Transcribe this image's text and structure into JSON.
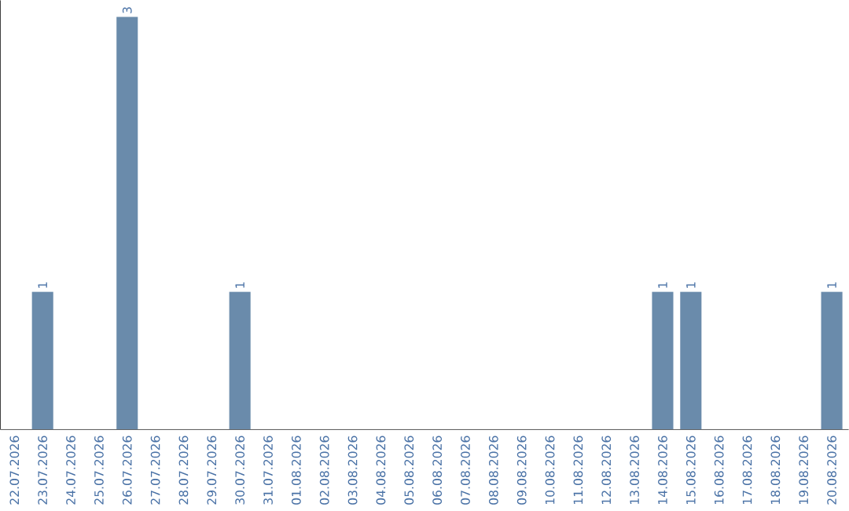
{
  "chart_data": {
    "type": "bar",
    "categories": [
      "22.07.2026",
      "23.07.2026",
      "24.07.2026",
      "25.07.2026",
      "26.07.2026",
      "27.07.2026",
      "28.07.2026",
      "29.07.2026",
      "30.07.2026",
      "31.07.2026",
      "01.08.2026",
      "02.08.2026",
      "03.08.2026",
      "04.08.2026",
      "05.08.2026",
      "06.08.2026",
      "07.08.2026",
      "08.08.2026",
      "09.08.2026",
      "10.08.2026",
      "11.08.2026",
      "12.08.2026",
      "13.08.2026",
      "14.08.2026",
      "15.08.2026",
      "16.08.2026",
      "17.08.2026",
      "18.08.2026",
      "19.08.2026",
      "20.08.2026"
    ],
    "values": [
      0,
      1,
      0,
      0,
      3,
      0,
      0,
      0,
      1,
      0,
      0,
      0,
      0,
      0,
      0,
      0,
      0,
      0,
      0,
      0,
      0,
      0,
      0,
      1,
      1,
      0,
      0,
      0,
      0,
      1
    ],
    "value_labels": [
      null,
      "1",
      null,
      null,
      "3",
      null,
      null,
      null,
      "1",
      null,
      null,
      null,
      null,
      null,
      null,
      null,
      null,
      null,
      null,
      null,
      null,
      null,
      null,
      "1",
      "1",
      null,
      null,
      null,
      null,
      "1"
    ],
    "color": "#6a8bab",
    "tick_labels": "x"
  }
}
